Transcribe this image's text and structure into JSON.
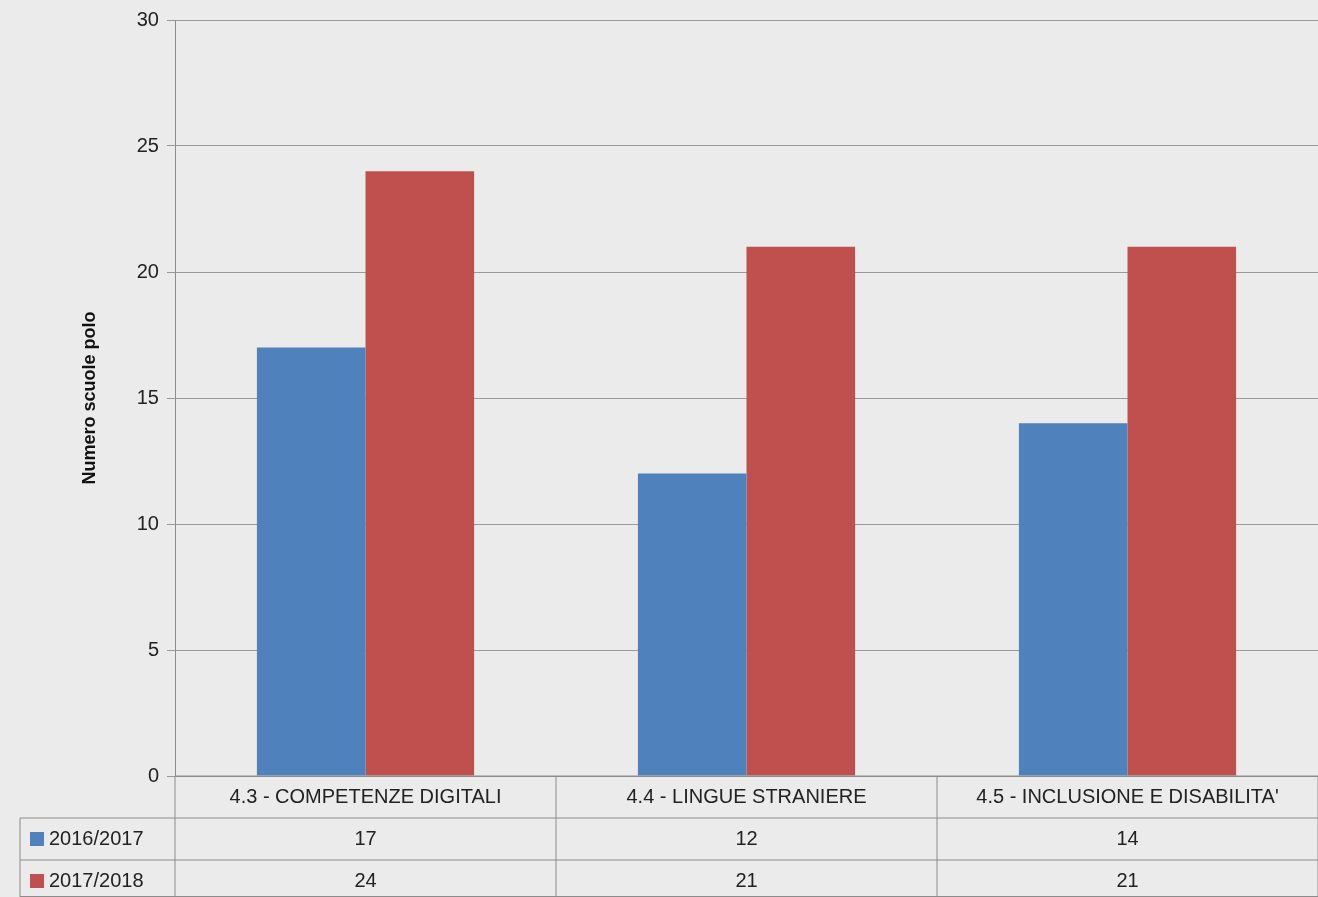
{
  "chart_data": {
    "type": "bar",
    "ylabel": "Numero scuole polo",
    "categories": [
      "4.3 - COMPETENZE DIGITALI",
      "4.4 - LINGUE STRANIERE",
      "4.5 - INCLUSIONE E DISABILITA'"
    ],
    "series": [
      {
        "name": "2016/2017",
        "color": "#4f81bd",
        "values": [
          17,
          12,
          14
        ]
      },
      {
        "name": "2017/2018",
        "color": "#c0504d",
        "values": [
          24,
          21,
          21
        ]
      }
    ],
    "ylim": [
      0,
      30
    ],
    "yticks": [
      0,
      5,
      10,
      15,
      20,
      25,
      30
    ],
    "grid": "y",
    "legend": "bottom",
    "data_labels": true
  }
}
